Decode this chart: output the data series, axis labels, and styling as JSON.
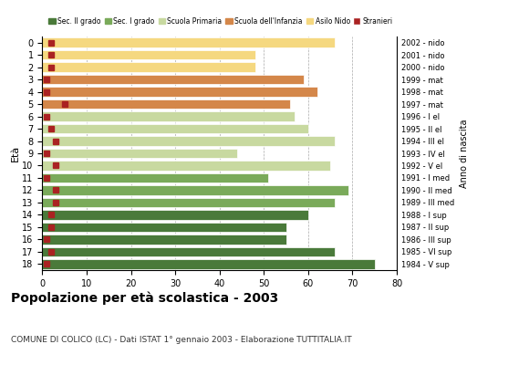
{
  "ages": [
    18,
    17,
    16,
    15,
    14,
    13,
    12,
    11,
    10,
    9,
    8,
    7,
    6,
    5,
    4,
    3,
    2,
    1,
    0
  ],
  "years": [
    "1984 - V sup",
    "1985 - VI sup",
    "1986 - III sup",
    "1987 - II sup",
    "1988 - I sup",
    "1989 - III med",
    "1990 - II med",
    "1991 - I med",
    "1992 - V el",
    "1993 - IV el",
    "1994 - III el",
    "1995 - II el",
    "1996 - I el",
    "1997 - mat",
    "1998 - mat",
    "1999 - mat",
    "2000 - nido",
    "2001 - nido",
    "2002 - nido"
  ],
  "values": [
    75,
    66,
    55,
    55,
    60,
    66,
    69,
    51,
    65,
    44,
    66,
    60,
    57,
    56,
    62,
    59,
    48,
    48,
    66
  ],
  "stranieri": [
    1,
    2,
    1,
    2,
    2,
    3,
    3,
    1,
    3,
    1,
    3,
    2,
    1,
    5,
    1,
    1,
    2,
    2,
    2
  ],
  "categories": {
    "sec2": [
      18,
      17,
      16,
      15,
      14
    ],
    "sec1": [
      13,
      12,
      11
    ],
    "primaria": [
      10,
      9,
      8,
      7,
      6
    ],
    "infanzia": [
      5,
      4,
      3
    ],
    "nido": [
      2,
      1,
      0
    ]
  },
  "colors": {
    "sec2": "#4a7a3a",
    "sec1": "#7aaa5a",
    "primaria": "#c8d9a0",
    "infanzia": "#d4874a",
    "nido": "#f5d880",
    "stranieri": "#aa2222"
  },
  "legend_labels": [
    "Sec. II grado",
    "Sec. I grado",
    "Scuola Primaria",
    "Scuola dell'Infanzia",
    "Asilo Nido",
    "Stranieri"
  ],
  "ylabel_label": "Età",
  "right_label": "Anno di nascita",
  "title": "Popolazione per età scolastica - 2003",
  "subtitle": "COMUNE DI COLICO (LC) - Dati ISTAT 1° gennaio 2003 - Elaborazione TUTTITALIA.IT",
  "xlim": [
    0,
    80
  ],
  "xticks": [
    0,
    10,
    20,
    30,
    40,
    50,
    60,
    70,
    80
  ],
  "bg_color": "#ffffff",
  "grid_color": "#aaaaaa"
}
